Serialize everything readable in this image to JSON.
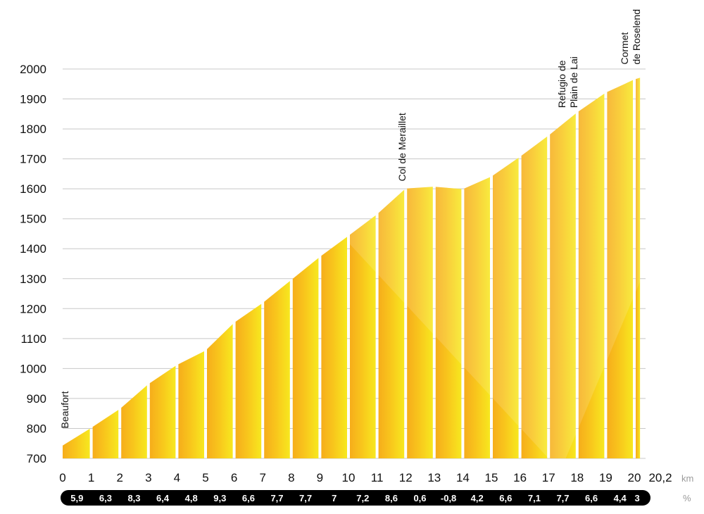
{
  "colors": {
    "low": "#f6ad1b",
    "high": "#f7e81f",
    "grid": "#c8c8c8",
    "band": "#000000"
  },
  "chart_data": {
    "type": "area",
    "title": "",
    "xlabel": "",
    "ylabel": "",
    "x_unit_label": "km",
    "grade_unit_label": "%",
    "ylim": [
      700,
      2000
    ],
    "y_ticks": [
      "700",
      "800",
      "900",
      "1000",
      "1100",
      "1200",
      "1300",
      "1400",
      "1500",
      "1600",
      "1700",
      "1800",
      "1900",
      "2000"
    ],
    "x_ticks": [
      "0",
      "1",
      "2",
      "3",
      "4",
      "5",
      "6",
      "7",
      "8",
      "9",
      "10",
      "11",
      "12",
      "13",
      "14",
      "15",
      "16",
      "17",
      "18",
      "19",
      "20",
      "20,2"
    ],
    "km": [
      0,
      1,
      2,
      3,
      4,
      5,
      6,
      7,
      8,
      9,
      10,
      11,
      12,
      13,
      14,
      15,
      16,
      17,
      18,
      19,
      20,
      20.2
    ],
    "altitude": [
      743,
      802,
      865,
      948,
      1012,
      1060,
      1153,
      1219,
      1296,
      1373,
      1443,
      1515,
      1601,
      1607,
      1599,
      1641,
      1707,
      1778,
      1855,
      1921,
      1965,
      1971
    ],
    "grades": [
      "5,9",
      "6,3",
      "8,3",
      "6,4",
      "4,8",
      "9,3",
      "6,6",
      "7,7",
      "7,7",
      "7",
      "7,2",
      "8,6",
      "0,6",
      "-0,8",
      "4,2",
      "6,6",
      "7,1",
      "7,7",
      "6,6",
      "4,4",
      "3"
    ],
    "grade_values": [
      5.9,
      6.3,
      8.3,
      6.4,
      4.8,
      9.3,
      6.6,
      7.7,
      7.7,
      7.0,
      7.2,
      8.6,
      0.6,
      -0.8,
      4.2,
      6.6,
      7.1,
      7.7,
      6.6,
      4.4,
      3.0
    ],
    "annotations": [
      {
        "km": 0.2,
        "altitude": 800,
        "lines": [
          "Beaufort"
        ]
      },
      {
        "km": 12,
        "altitude": 1625,
        "lines": [
          "Col de Meraillet"
        ]
      },
      {
        "km": 18,
        "altitude": 1870,
        "lines": [
          "Refugio de",
          "Plain de Lai"
        ]
      },
      {
        "km": 20.2,
        "altitude": 2015,
        "lines": [
          "Cormet",
          "de Roselend"
        ]
      }
    ]
  }
}
